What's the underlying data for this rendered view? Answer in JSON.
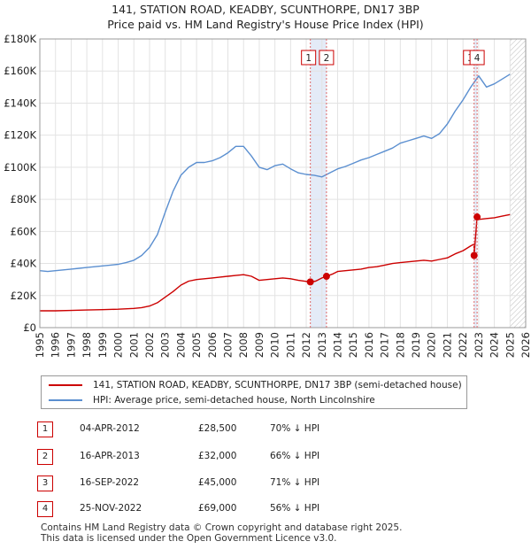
{
  "chart_data": {
    "type": "line",
    "title": "141, STATION ROAD, KEADBY, SCUNTHORPE, DN17 3BP",
    "subtitle": "Price paid vs. HM Land Registry's House Price Index (HPI)",
    "xlabel": "",
    "ylabel": "",
    "xlim": [
      1995,
      2026
    ],
    "ylim": [
      0,
      180000
    ],
    "x_ticks": [
      "1995",
      "1996",
      "1997",
      "1998",
      "1999",
      "2000",
      "2001",
      "2002",
      "2003",
      "2004",
      "2005",
      "2006",
      "2007",
      "2008",
      "2009",
      "2010",
      "2011",
      "2012",
      "2013",
      "2014",
      "2015",
      "2016",
      "2017",
      "2018",
      "2019",
      "2020",
      "2021",
      "2022",
      "2023",
      "2024",
      "2025",
      "2026"
    ],
    "y_ticks": [
      {
        "value": 0,
        "label": "£0"
      },
      {
        "value": 20000,
        "label": "£20K"
      },
      {
        "value": 40000,
        "label": "£40K"
      },
      {
        "value": 60000,
        "label": "£60K"
      },
      {
        "value": 80000,
        "label": "£80K"
      },
      {
        "value": 100000,
        "label": "£100K"
      },
      {
        "value": 120000,
        "label": "£120K"
      },
      {
        "value": 140000,
        "label": "£140K"
      },
      {
        "value": 160000,
        "label": "£160K"
      },
      {
        "value": 180000,
        "label": "£180K"
      }
    ],
    "grid": true,
    "series": [
      {
        "name": "141, STATION ROAD, KEADBY, SCUNTHORPE, DN17 3BP (semi-detached house)",
        "color": "#cc0000",
        "x": [
          1995.0,
          1996.0,
          1997.0,
          1998.0,
          1999.0,
          2000.0,
          2001.0,
          2001.5,
          2002.0,
          2002.5,
          2003.0,
          2003.5,
          2004.0,
          2004.5,
          2005.0,
          2005.5,
          2006.0,
          2006.5,
          2007.0,
          2007.5,
          2008.0,
          2008.5,
          2009.0,
          2009.5,
          2010.0,
          2010.5,
          2011.0,
          2011.5,
          2012.26,
          2012.6,
          2013.0,
          2013.29,
          2013.7,
          2014.0,
          2014.5,
          2015.0,
          2015.5,
          2016.0,
          2016.5,
          2017.0,
          2017.5,
          2018.0,
          2018.5,
          2019.0,
          2019.5,
          2020.0,
          2020.5,
          2021.0,
          2021.5,
          2022.0,
          2022.5,
          2022.7,
          2022.71,
          2022.9,
          2023.0,
          2023.5,
          2024.0,
          2024.5,
          2025.0
        ],
        "values": [
          10500,
          10500,
          10700,
          11000,
          11200,
          11500,
          12000,
          12500,
          13500,
          15500,
          19000,
          22500,
          26500,
          29000,
          30000,
          30500,
          31000,
          31500,
          32000,
          32500,
          33000,
          32000,
          29500,
          30000,
          30500,
          31000,
          30500,
          29500,
          28500,
          29000,
          31000,
          32000,
          33500,
          35000,
          35500,
          36000,
          36500,
          37500,
          38000,
          39000,
          40000,
          40500,
          41000,
          41500,
          42000,
          41500,
          42500,
          43500,
          46000,
          48000,
          51000,
          52000,
          45000,
          69000,
          67500,
          68000,
          68500,
          69500,
          70500
        ]
      },
      {
        "name": "HPI: Average price, semi-detached house, North Lincolnshire",
        "color": "#5b8fd0",
        "x": [
          1995.0,
          1995.5,
          1996.0,
          1996.5,
          1997.0,
          1997.5,
          1998.0,
          1998.5,
          1999.0,
          1999.5,
          2000.0,
          2000.5,
          2001.0,
          2001.5,
          2002.0,
          2002.5,
          2003.0,
          2003.5,
          2004.0,
          2004.5,
          2005.0,
          2005.5,
          2006.0,
          2006.5,
          2007.0,
          2007.5,
          2008.0,
          2008.5,
          2009.0,
          2009.5,
          2010.0,
          2010.5,
          2011.0,
          2011.5,
          2012.0,
          2012.5,
          2013.0,
          2013.5,
          2014.0,
          2014.5,
          2015.0,
          2015.5,
          2016.0,
          2016.5,
          2017.0,
          2017.5,
          2018.0,
          2018.5,
          2019.0,
          2019.5,
          2020.0,
          2020.5,
          2021.0,
          2021.5,
          2022.0,
          2022.5,
          2023.0,
          2023.5,
          2024.0,
          2024.5,
          2025.0
        ],
        "values": [
          35500,
          35000,
          35500,
          36000,
          36500,
          37000,
          37500,
          38000,
          38500,
          39000,
          39500,
          40500,
          42000,
          45000,
          50000,
          58000,
          72000,
          85000,
          95000,
          100000,
          103000,
          103000,
          104000,
          106000,
          109000,
          113000,
          113000,
          107000,
          100000,
          98500,
          101000,
          102000,
          99000,
          96500,
          95500,
          95000,
          94000,
          96500,
          99000,
          100500,
          102500,
          104500,
          106000,
          108000,
          110000,
          112000,
          115000,
          116500,
          118000,
          119500,
          118000,
          121000,
          127000,
          135000,
          142000,
          150000,
          157000,
          150000,
          152000,
          155000,
          158000
        ]
      }
    ],
    "transactions": [
      {
        "id": "1",
        "date": "04-APR-2012",
        "x": 2012.26,
        "price_value": 28500,
        "price": "£28,500",
        "hpi": "70% ↓ HPI"
      },
      {
        "id": "2",
        "date": "16-APR-2013",
        "x": 2013.29,
        "price_value": 32000,
        "price": "£32,000",
        "hpi": "66% ↓ HPI"
      },
      {
        "id": "3",
        "date": "16-SEP-2022",
        "x": 2022.71,
        "price_value": 45000,
        "price": "£45,000",
        "hpi": "71% ↓ HPI"
      },
      {
        "id": "4",
        "date": "25-NOV-2022",
        "x": 2022.9,
        "price_value": 69000,
        "price": "£69,000",
        "hpi": "56% ↓ HPI"
      }
    ],
    "shaded_ranges": [
      [
        2012.26,
        2013.29
      ],
      [
        2022.71,
        2022.9
      ]
    ],
    "hatched_range": [
      2025.0,
      2026.0
    ]
  },
  "footer": {
    "line1": "Contains HM Land Registry data © Crown copyright and database right 2025.",
    "line2": "This data is licensed under the Open Government Licence v3.0."
  }
}
